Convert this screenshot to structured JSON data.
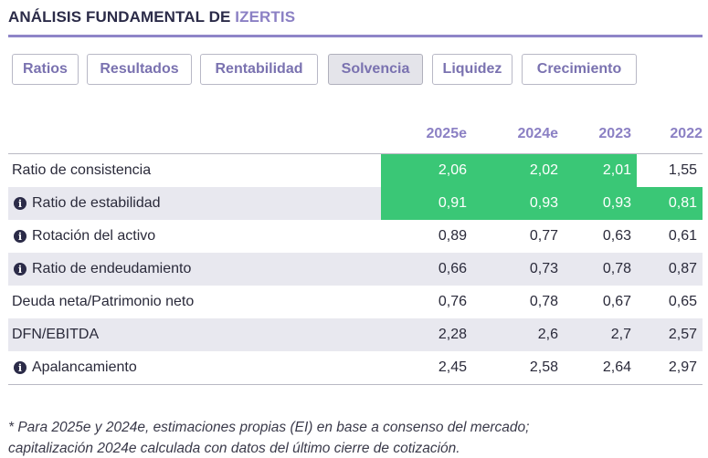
{
  "header": {
    "title_prefix": "ANÁLISIS FUNDAMENTAL DE ",
    "title_company": "IZERTIS"
  },
  "tabs": [
    {
      "label": "Ratios",
      "active": false
    },
    {
      "label": "Resultados",
      "active": false
    },
    {
      "label": "Rentabilidad",
      "active": false
    },
    {
      "label": "Solvencia",
      "active": true
    },
    {
      "label": "Liquidez",
      "active": false
    },
    {
      "label": "Crecimiento",
      "active": false
    }
  ],
  "table": {
    "columns": [
      "2025e",
      "2024e",
      "2023",
      "2022"
    ],
    "rows": [
      {
        "label": "Ratio de consistencia",
        "info": false,
        "values": [
          "2,06",
          "2,02",
          "2,01",
          "1,55"
        ],
        "highlight": [
          true,
          true,
          true,
          false
        ]
      },
      {
        "label": "Ratio de estabilidad",
        "info": true,
        "values": [
          "0,91",
          "0,93",
          "0,93",
          "0,81"
        ],
        "highlight": [
          true,
          true,
          true,
          true
        ]
      },
      {
        "label": "Rotación del activo",
        "info": true,
        "values": [
          "0,89",
          "0,77",
          "0,63",
          "0,61"
        ],
        "highlight": [
          false,
          false,
          false,
          false
        ]
      },
      {
        "label": "Ratio de endeudamiento",
        "info": true,
        "values": [
          "0,66",
          "0,73",
          "0,78",
          "0,87"
        ],
        "highlight": [
          false,
          false,
          false,
          false
        ]
      },
      {
        "label": "Deuda neta/Patrimonio neto",
        "info": false,
        "values": [
          "0,76",
          "0,78",
          "0,67",
          "0,65"
        ],
        "highlight": [
          false,
          false,
          false,
          false
        ]
      },
      {
        "label": "DFN/EBITDA",
        "info": false,
        "values": [
          "2,28",
          "2,6",
          "2,7",
          "2,57"
        ],
        "highlight": [
          false,
          false,
          false,
          false
        ]
      },
      {
        "label": "Apalancamiento",
        "info": true,
        "values": [
          "2,45",
          "2,58",
          "2,64",
          "2,97"
        ],
        "highlight": [
          false,
          false,
          false,
          false
        ]
      }
    ]
  },
  "footnote": {
    "line1": "* Para 2025e y 2024e, estimaciones propias (EI) en base a consenso del mercado;",
    "line2": "capitalización 2024e calculada con datos del último cierre de cotización."
  },
  "colors": {
    "accent": "#8b80c4",
    "highlight_green": "#3ac776",
    "row_shade": "#e8e8ef",
    "title": "#2b2b48"
  },
  "icons": {
    "info": "info-circle-icon"
  }
}
